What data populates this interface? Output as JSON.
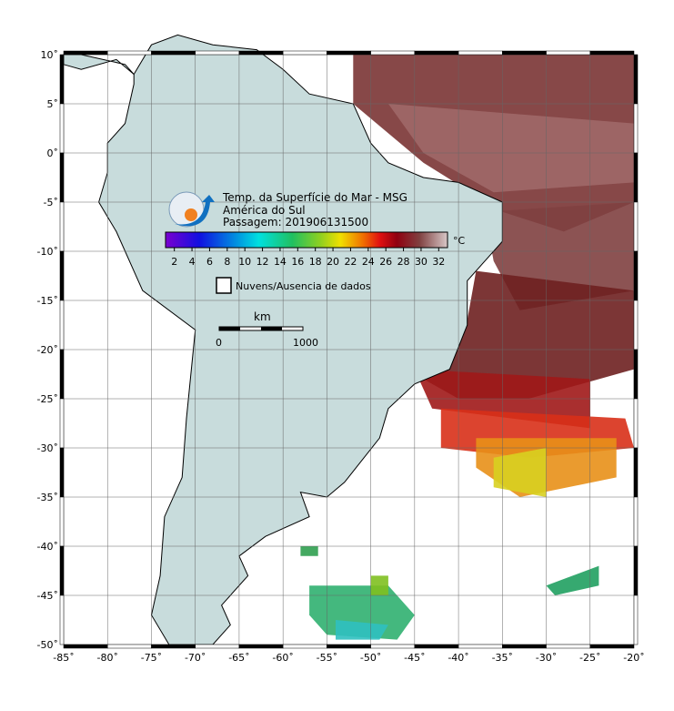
{
  "map": {
    "title": "Temp. da Superfície do Mar - MSG",
    "region": "América do Sul",
    "pass": "Passagem: 201906131500",
    "xlim": [
      -85,
      -20
    ],
    "ylim": [
      -50,
      10
    ],
    "xticks": [
      {
        "value": -85,
        "label": "-85˚"
      },
      {
        "value": -80,
        "label": "-80˚"
      },
      {
        "value": -75,
        "label": "-75˚"
      },
      {
        "value": -70,
        "label": "-70˚"
      },
      {
        "value": -65,
        "label": "-65˚"
      },
      {
        "value": -60,
        "label": "-60˚"
      },
      {
        "value": -55,
        "label": "-55˚"
      },
      {
        "value": -50,
        "label": "-50˚"
      },
      {
        "value": -45,
        "label": "-45˚"
      },
      {
        "value": -40,
        "label": "-40˚"
      },
      {
        "value": -35,
        "label": "-35˚"
      },
      {
        "value": -30,
        "label": "-30˚"
      },
      {
        "value": -25,
        "label": "-25˚"
      },
      {
        "value": -20,
        "label": "-20˚"
      }
    ],
    "yticks": [
      {
        "value": 10,
        "label": "10˚"
      },
      {
        "value": 5,
        "label": "5˚"
      },
      {
        "value": 0,
        "label": "0˚"
      },
      {
        "value": -5,
        "label": "-5˚"
      },
      {
        "value": -10,
        "label": "-10˚"
      },
      {
        "value": -15,
        "label": "-15˚"
      },
      {
        "value": -20,
        "label": "-20˚"
      },
      {
        "value": -25,
        "label": "-25˚"
      },
      {
        "value": -30,
        "label": "-30˚"
      },
      {
        "value": -35,
        "label": "-35˚"
      },
      {
        "value": -40,
        "label": "-40˚"
      },
      {
        "value": -45,
        "label": "-45˚"
      },
      {
        "value": -50,
        "label": "-50˚"
      }
    ],
    "colorbar": {
      "unit": "°C",
      "clim": [
        1,
        33
      ],
      "ticks": [
        2,
        4,
        6,
        8,
        10,
        12,
        14,
        16,
        18,
        20,
        22,
        24,
        26,
        28,
        30,
        32
      ]
    },
    "legend": "Nuvens/Ausencia de dados",
    "scale": {
      "unit": "km",
      "labels": [
        "0",
        "1000"
      ]
    }
  }
}
